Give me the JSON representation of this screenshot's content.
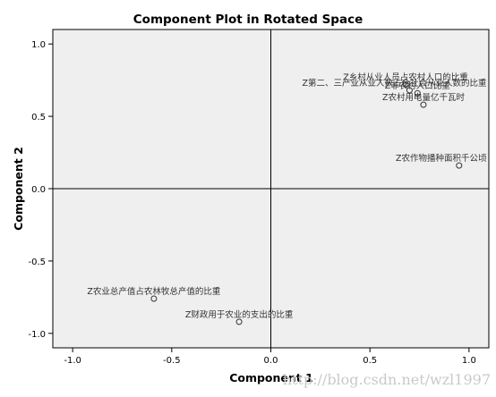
{
  "chart_data": {
    "type": "scatter",
    "title": "Component Plot in Rotated Space",
    "xlabel": "Component 1",
    "ylabel": "Component 2",
    "xlim": [
      -1.1,
      1.1
    ],
    "ylim": [
      -1.1,
      1.1
    ],
    "x_ticks": [
      "-1.0",
      "-0.5",
      "0.0",
      "0.5",
      "1.0"
    ],
    "y_ticks": [
      "1.0",
      "0.5",
      "0.0",
      "-0.5",
      "-1.0"
    ],
    "x_tick_values": [
      -1.0,
      -0.5,
      0.0,
      0.5,
      1.0
    ],
    "y_tick_values": [
      1.0,
      0.5,
      0.0,
      -0.5,
      -1.0
    ],
    "reference_lines": {
      "x": 0,
      "y": 0
    },
    "grid": false,
    "plot_background": "#efefef",
    "marker_color": "#333333",
    "points": [
      {
        "label": "Z乡村从业人员占农村人口的比重",
        "x": 0.68,
        "y": 0.72
      },
      {
        "label": "Z非农村人口比重",
        "x": 0.74,
        "y": 0.66
      },
      {
        "label": "Z第二、三产业从业人数占全社会从业人数的比重",
        "x": 0.7,
        "y": 0.68
      },
      {
        "label": "Z农村用电量亿千瓦时",
        "x": 0.77,
        "y": 0.58
      },
      {
        "label": "Z农作物播种面积千公顷",
        "x": 0.95,
        "y": 0.16
      },
      {
        "label": "Z农业总产值占农林牧总产值的比重",
        "x": -0.59,
        "y": -0.76
      },
      {
        "label": "Z财政用于农业的支出的比重",
        "x": -0.16,
        "y": -0.92
      }
    ]
  },
  "watermark": "http://blog.csdn.net/wzl1997"
}
